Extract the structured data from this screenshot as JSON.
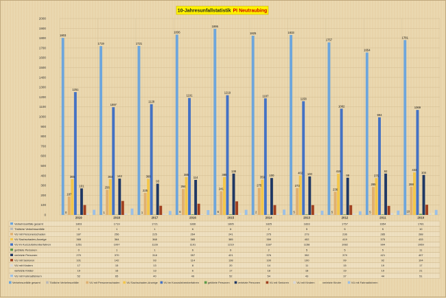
{
  "chart_data": {
    "type": "bar",
    "title": "10-Jahresunfallstatistik",
    "title_highlight": "PI Neutraubing",
    "categories": [
      "2019",
      "2018",
      "2017",
      "2016",
      "2015",
      "2014",
      "2013",
      "2012",
      "2011",
      "2010"
    ],
    "ylim": [
      0,
      2000
    ],
    "yticks": [
      0,
      100,
      200,
      300,
      400,
      500,
      600,
      700,
      800,
      900,
      1000,
      1100,
      1200,
      1300,
      1400,
      1500,
      1600,
      1700,
      1800,
      1900,
      2000
    ],
    "grid": true,
    "legend_position": "bottom",
    "series": [
      {
        "name": "Verkehrsunfälle gesamt",
        "color": "#6ea6dc",
        "values": [
          1803,
          1719,
          1721,
          1836,
          1895,
          1825,
          1833,
          1757,
          1654,
          1781
        ]
      },
      {
        "name": "Tödliche Verkehrsunfälle",
        "color": "#b9b9b9",
        "values": [
          0,
          1,
          1,
          6,
          6,
          2,
          5,
          5,
          5,
          10
        ]
      },
      {
        "name": "VU mit Personenschaden",
        "color": "#e0b070",
        "values": [
          187,
          256,
          225,
          264,
          241,
          275,
          273,
          236,
          285,
          288
        ]
      },
      {
        "name": "VU Sachschaden-Anzeige",
        "color": "#f3c64a",
        "values": [
          365,
          364,
          368,
          385,
          385,
          359,
          402,
          419,
          375,
          433
        ]
      },
      {
        "name": "VU im Kurzzufahrenberfahren",
        "color": "#4472c4",
        "values": [
          1251,
          1097,
          1128,
          1191,
          1219,
          1187,
          1158,
          1082,
          994,
          1069
        ]
      },
      {
        "name": "getötete Personen",
        "color": "#5d9a4a",
        "values": [
          0,
          1,
          1,
          6,
          6,
          2,
          5,
          5,
          5,
          11
        ]
      },
      {
        "name": "verletzte Personen",
        "color": "#203864",
        "values": [
          270,
          370,
          318,
          357,
          421,
          376,
          392,
          379,
          421,
          407
        ]
      },
      {
        "name": "VU mit Senioren",
        "color": "#a04020",
        "values": [
          101,
          142,
          93,
          114,
          138,
          100,
          100,
          99,
          92,
          104
        ]
      },
      {
        "name": "VU mit Kindern",
        "color": "#d8d8d8",
        "values": [
          17,
          15,
          13,
          8,
          20,
          14,
          11,
          15,
          19,
          17
        ]
      },
      {
        "name": "verletzte Kinder",
        "color": "#efe0b0",
        "values": [
          19,
          16,
          13,
          6,
          17,
          18,
          18,
          19,
          19,
          21
        ]
      },
      {
        "name": "VU mit Fahrradfahrern",
        "color": "#9cc0e6",
        "values": [
          52,
          65,
          40,
          49,
          52,
          54,
          43,
          37,
          44,
          51
        ]
      }
    ],
    "bar_labels": [
      "1803",
      "1719",
      "1721",
      "1836",
      "1895",
      "1825",
      "1833",
      "1757",
      "1654",
      "1781",
      "0",
      "1",
      "1",
      "6",
      "6",
      "2",
      "5",
      "5",
      "5",
      "10",
      "187",
      "256",
      "225",
      "264",
      "241",
      "275",
      "273",
      "236",
      "285",
      "288",
      "365",
      "364",
      "368",
      "385",
      "385",
      "359",
      "402",
      "419",
      "375",
      "433",
      "1251",
      "1097",
      "1128",
      "1191",
      "1219",
      "1187",
      "1158",
      "1082",
      "994",
      "1069",
      "270",
      "370",
      "318",
      "357",
      "421",
      "376",
      "392",
      "379",
      "421",
      "407",
      "101",
      "142",
      "93",
      "114",
      "138",
      "100",
      "100",
      "99",
      "92",
      "104"
    ]
  }
}
